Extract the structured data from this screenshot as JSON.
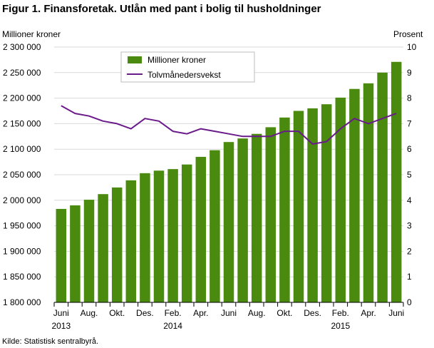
{
  "chart_data": {
    "type": "bar+line",
    "title": "Figur 1. Finansforetak. Utlån med pant i bolig til husholdninger",
    "ylabel_left": "Millioner  kroner",
    "ylabel_right": "Prosent",
    "source": "Kilde: Statistisk sentralbyrå.",
    "ylim_left": [
      1800000,
      2300000
    ],
    "ylim_right": [
      0,
      10
    ],
    "yticks_left": [
      "1 800 000",
      "1 850 000",
      "1 900 000",
      "1 950 000",
      "2 000 000",
      "2 050 000",
      "2 100 000",
      "2 150 000",
      "2 200 000",
      "2 250 000",
      "2 300 000"
    ],
    "yticks_right": [
      "0",
      "1",
      "2",
      "3",
      "4",
      "5",
      "6",
      "7",
      "8",
      "9",
      "10"
    ],
    "xtick_labels": [
      {
        "index": 0,
        "label": "Juni"
      },
      {
        "index": 2,
        "label": "Aug."
      },
      {
        "index": 4,
        "label": "Okt."
      },
      {
        "index": 6,
        "label": "Des."
      },
      {
        "index": 8,
        "label": "Feb."
      },
      {
        "index": 10,
        "label": "Apr."
      },
      {
        "index": 12,
        "label": "Juni"
      },
      {
        "index": 14,
        "label": "Aug."
      },
      {
        "index": 16,
        "label": "Okt."
      },
      {
        "index": 18,
        "label": "Des."
      },
      {
        "index": 20,
        "label": "Feb."
      },
      {
        "index": 22,
        "label": "Apr."
      },
      {
        "index": 24,
        "label": "Juni"
      }
    ],
    "year_labels": [
      {
        "index": 0,
        "label": "2013"
      },
      {
        "index": 8,
        "label": "2014"
      },
      {
        "index": 20,
        "label": "2015"
      }
    ],
    "legend_position": "top-center",
    "series": [
      {
        "name": "Millioner kroner",
        "type": "bar",
        "axis": "left",
        "color": "#4a8a0f",
        "values": [
          1983000,
          1990000,
          2001000,
          2012000,
          2025000,
          2039000,
          2053000,
          2058000,
          2061000,
          2070000,
          2085000,
          2098000,
          2114000,
          2121000,
          2130000,
          2143000,
          2162000,
          2175000,
          2180000,
          2188000,
          2201000,
          2218000,
          2229000,
          2250000,
          2271000
        ]
      },
      {
        "name": "Tolvmånedersvekst",
        "type": "line",
        "axis": "right",
        "color": "#6a1b8a",
        "values": [
          7.7,
          7.4,
          7.3,
          7.1,
          7.0,
          6.8,
          7.2,
          7.1,
          6.7,
          6.6,
          6.8,
          6.7,
          6.6,
          6.5,
          6.5,
          6.5,
          6.7,
          6.7,
          6.2,
          6.3,
          6.8,
          7.2,
          7.0,
          7.2,
          7.4
        ]
      }
    ]
  }
}
